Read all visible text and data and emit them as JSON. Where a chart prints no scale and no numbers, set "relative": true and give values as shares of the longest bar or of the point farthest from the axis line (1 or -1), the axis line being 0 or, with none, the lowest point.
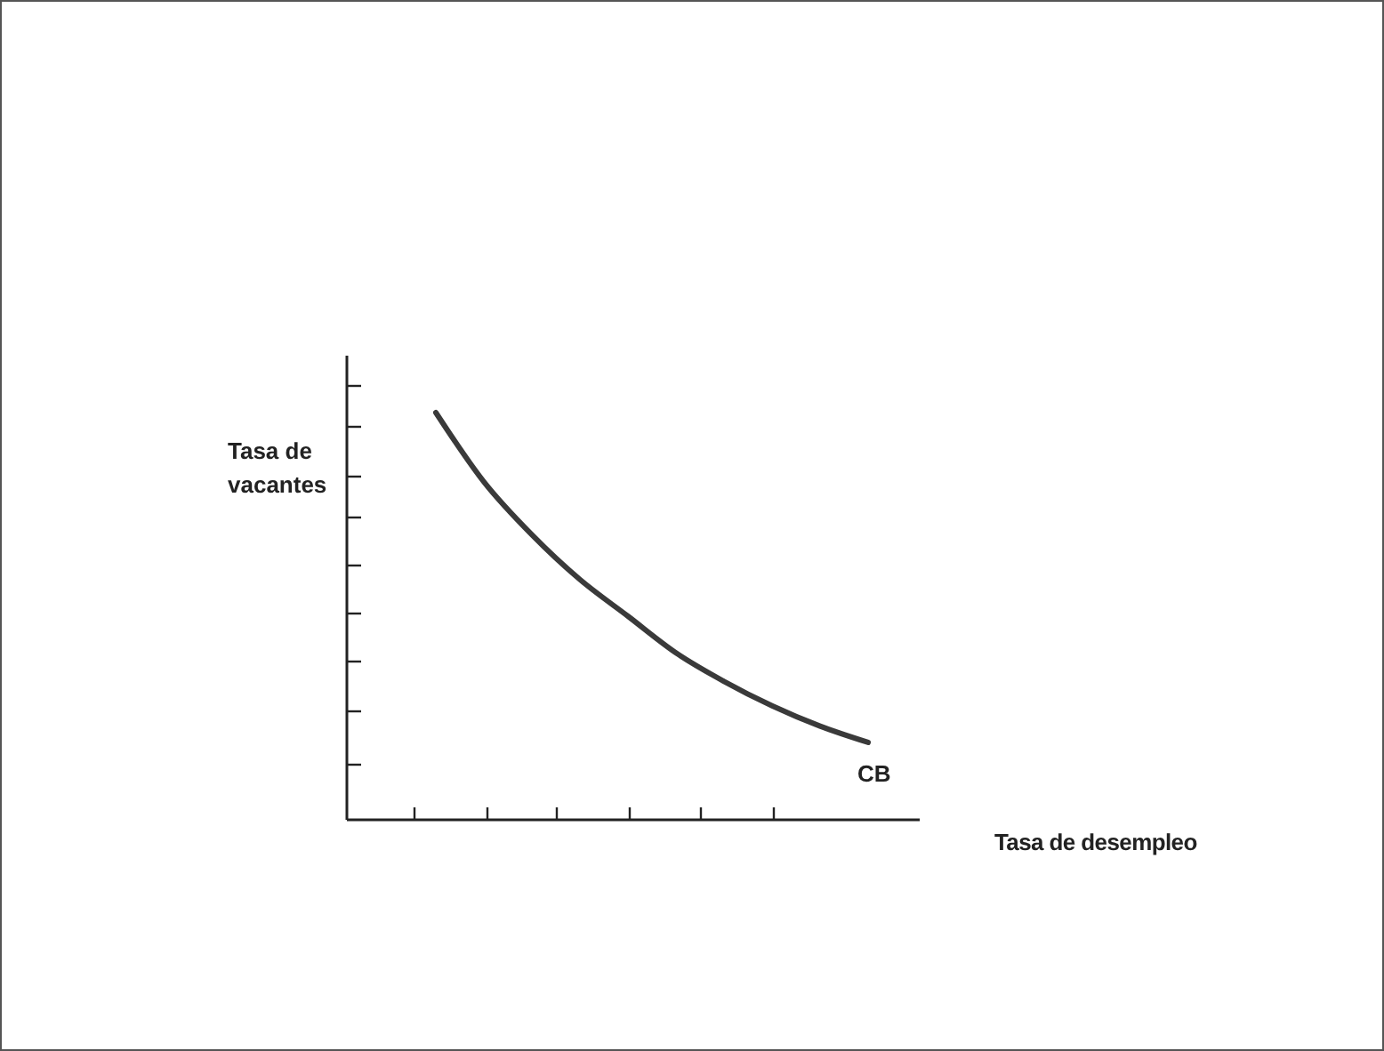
{
  "chart_data": {
    "type": "line",
    "relative": true,
    "xlabel": "Tasa de desempleo",
    "ylabel": "Tasa de vacantes",
    "categories": [
      null,
      null,
      null,
      null,
      null,
      null,
      null,
      null,
      null,
      null
    ],
    "series": [
      {
        "name": "CB",
        "color": "#3a3a3a",
        "values": [
          1,
          0.83,
          0.7,
          0.59,
          0.5,
          0.41,
          0.34,
          0.28,
          0.23,
          0.19
        ]
      }
    ],
    "grid": false,
    "marker": "none",
    "line_style": "solid"
  }
}
